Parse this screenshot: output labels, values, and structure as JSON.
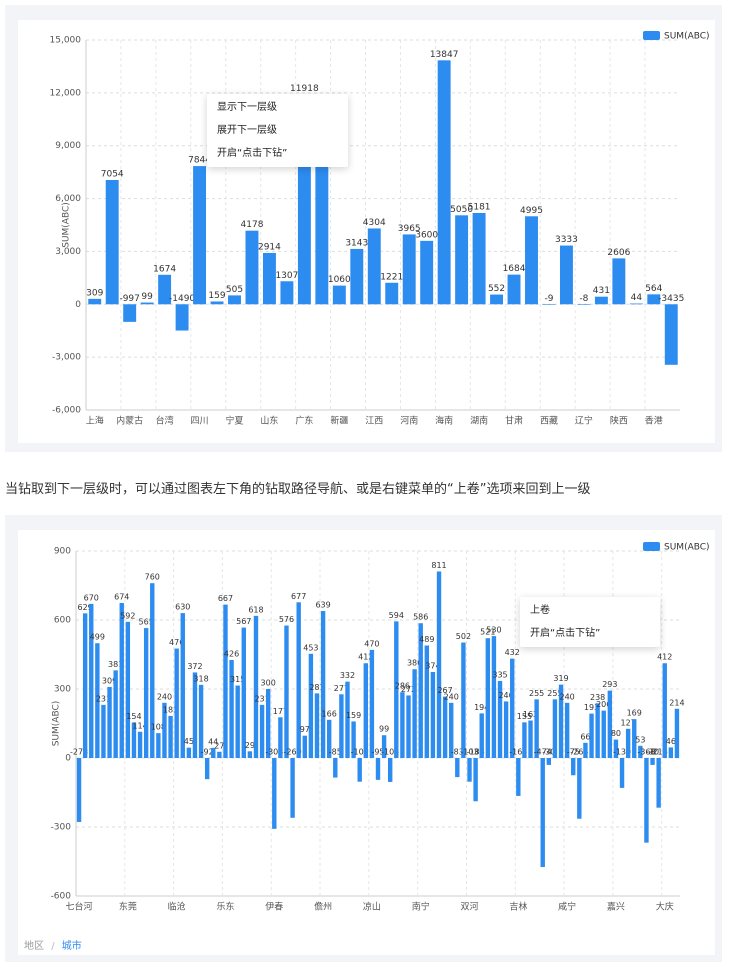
{
  "chart_data": [
    {
      "type": "bar",
      "y_label": "SUM(ABC)",
      "legend": "top-right",
      "grid": true,
      "categories": [
        "上海",
        null,
        "内蒙古",
        null,
        "台湾",
        null,
        "四川",
        null,
        "宁夏",
        null,
        "山东",
        null,
        "广东",
        null,
        "新疆",
        null,
        "江西",
        null,
        "河南",
        null,
        "海南",
        null,
        "湖南",
        null,
        "甘肃",
        null,
        "西藏",
        null,
        "辽宁",
        null,
        "陕西",
        null,
        "香港",
        null
      ],
      "series": [
        {
          "name": "SUM(ABC)",
          "color": "#2d8cf0",
          "values": [
            309,
            7054,
            -997,
            99,
            1674,
            -1490,
            7844,
            159,
            505,
            4178,
            2914,
            1307,
            11918,
            10500,
            1060,
            3143,
            4304,
            1221,
            3965,
            3600,
            13847,
            5050,
            5181,
            552,
            1684,
            4995,
            -9,
            3333,
            -8,
            431,
            2606,
            44,
            564,
            -3435
          ]
        }
      ],
      "ylim": [
        -6000,
        15000
      ],
      "yticks": [
        {
          "value": -6000,
          "label": "-6,000"
        },
        {
          "value": -3000,
          "label": "-3,000"
        },
        0,
        {
          "value": 3000,
          "label": "3,000"
        },
        {
          "value": 6000,
          "label": "6,000"
        },
        {
          "value": 9000,
          "label": "9,000"
        },
        {
          "value": 12000,
          "label": "12,000"
        },
        {
          "value": 15000,
          "label": "15,000"
        }
      ]
    },
    {
      "type": "bar",
      "y_label": "SUM(ABC)",
      "legend": "top-right",
      "grid": true,
      "categories": [
        "七台河",
        null,
        null,
        null,
        null,
        null,
        null,
        null,
        "东莞",
        null,
        null,
        null,
        null,
        null,
        null,
        null,
        "临沧",
        null,
        null,
        null,
        null,
        null,
        null,
        null,
        "乐东",
        null,
        null,
        null,
        null,
        null,
        null,
        null,
        "伊春",
        null,
        null,
        null,
        null,
        null,
        null,
        null,
        "儋州",
        null,
        null,
        null,
        null,
        null,
        null,
        null,
        "凉山",
        null,
        null,
        null,
        null,
        null,
        null,
        null,
        "南宁",
        null,
        null,
        null,
        null,
        null,
        null,
        null,
        "双河",
        null,
        null,
        null,
        null,
        null,
        null,
        null,
        "吉林",
        null,
        null,
        null,
        null,
        null,
        null,
        null,
        "咸宁",
        null,
        null,
        null,
        null,
        null,
        null,
        null,
        "嘉兴",
        null,
        null,
        null,
        null,
        null,
        null,
        null,
        "大庆",
        null,
        null
      ],
      "series": [
        {
          "name": "SUM(ABC)",
          "color": "#2d8cf0",
          "values": [
            -278,
            629,
            670,
            499,
            231,
            309,
            381,
            674,
            592,
            154,
            114,
            565,
            760,
            108,
            240,
            183,
            476,
            630,
            45,
            372,
            318,
            -92,
            44,
            27,
            667,
            426,
            315,
            567,
            29,
            618,
            231,
            300,
            -308,
            177,
            576,
            -260,
            677,
            97,
            453,
            281,
            639,
            166,
            -85,
            277,
            332,
            159,
            -103,
            412,
            470,
            -95,
            99,
            -104,
            594,
            286,
            272,
            386,
            586,
            489,
            374,
            811,
            267,
            240,
            -83,
            502,
            -103,
            -188,
            194,
            521,
            530,
            335,
            246,
            432,
            -165,
            155,
            163,
            255,
            -474,
            -30,
            255,
            319,
            240,
            -75,
            -264,
            66,
            193,
            238,
            206,
            293,
            80,
            -130,
            127,
            169,
            53,
            -368,
            -30,
            -216,
            412,
            46,
            214
          ]
        }
      ],
      "ylim": [
        -600,
        900
      ],
      "yticks": [
        -600,
        -300,
        0,
        300,
        600,
        900
      ]
    }
  ],
  "menu_1": {
    "items": [
      "显示下一层级",
      "展开下一层级",
      "开启“点击下钻”"
    ]
  },
  "caption": "当钻取到下一层级时，可以通过图表左下角的钻取路径导航、或是右键菜单的“上卷”选项来回到上一级",
  "menu_2": {
    "items": [
      "上卷",
      "开启“点击下钻”"
    ]
  },
  "breadcrumb": {
    "items": [
      "地区",
      "城市"
    ],
    "separator": "/"
  }
}
